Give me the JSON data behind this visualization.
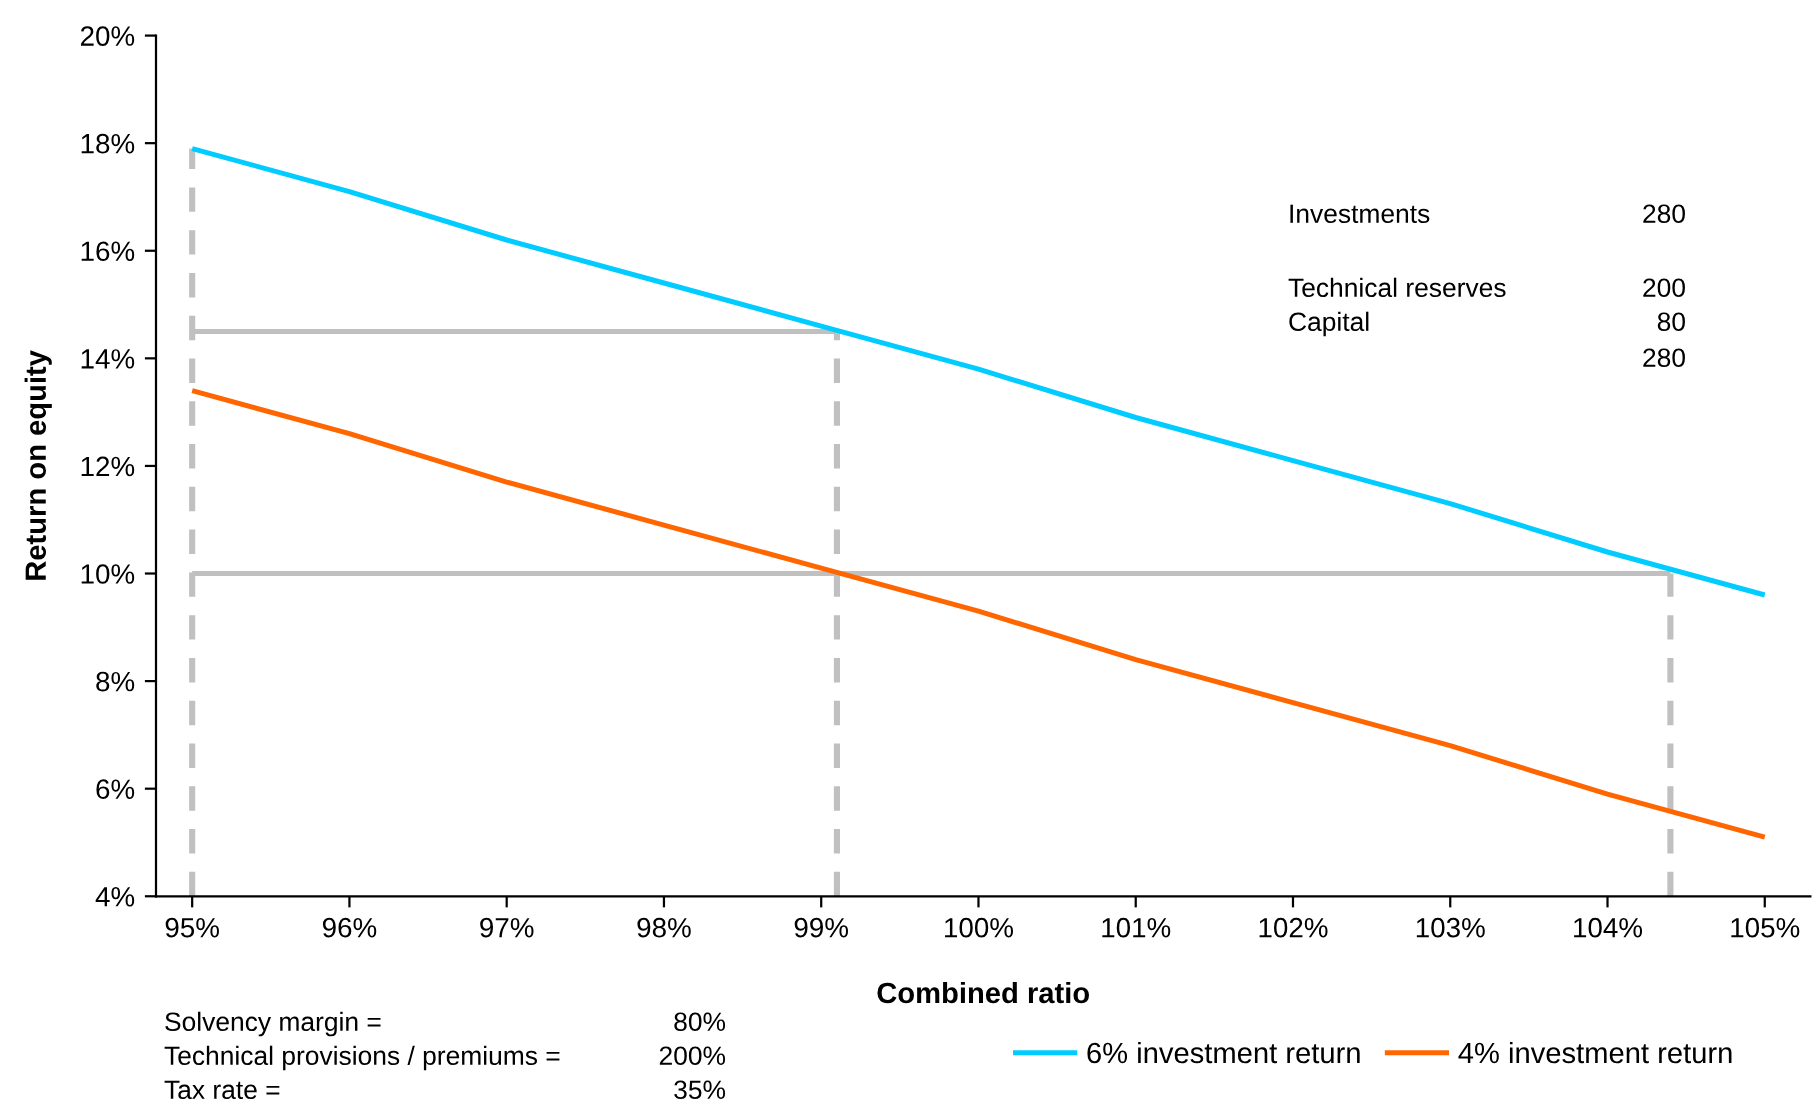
{
  "chart_data": {
    "type": "line",
    "xlabel": "Combined ratio",
    "ylabel": "Return on equity",
    "x": [
      95,
      96,
      97,
      98,
      99,
      100,
      101,
      102,
      103,
      104,
      105
    ],
    "series": [
      {
        "name": "6% investment return",
        "color": "#00ccff",
        "values": [
          17.9,
          17.1,
          16.2,
          15.4,
          14.6,
          13.8,
          12.9,
          12.1,
          11.3,
          10.4,
          9.6
        ]
      },
      {
        "name": "4% investment return",
        "color": "#ff6600",
        "values": [
          13.4,
          12.6,
          11.7,
          10.9,
          10.1,
          9.3,
          8.4,
          7.6,
          6.8,
          5.9,
          5.1
        ]
      },
      {
        "color": "#c0c0c0",
        "x": [
          95,
          99.1
        ],
        "values": [
          14.5,
          14.5
        ],
        "line_style": "solid"
      },
      {
        "color": "#c0c0c0",
        "x": [
          95,
          104.4
        ],
        "values": [
          10,
          10
        ],
        "line_style": "solid"
      },
      {
        "color": "#c0c0c0",
        "x": [
          95,
          95
        ],
        "values": [
          4,
          17.9
        ],
        "line_style": "dashed"
      },
      {
        "color": "#c0c0c0",
        "x": [
          99.1,
          99.1
        ],
        "values": [
          4,
          14.5
        ],
        "line_style": "dashed"
      },
      {
        "color": "#c0c0c0",
        "x": [
          104.4,
          104.4
        ],
        "values": [
          4,
          10
        ],
        "line_style": "dashed"
      }
    ],
    "xlim": [
      94.77,
      105.29
    ],
    "xticks": [
      {
        "value": 95,
        "label": "95%"
      },
      {
        "value": 96,
        "label": "96%"
      },
      {
        "value": 97,
        "label": "97%"
      },
      {
        "value": 98,
        "label": "98%"
      },
      {
        "value": 99,
        "label": "99%"
      },
      {
        "value": 100,
        "label": "100%"
      },
      {
        "value": 101,
        "label": "101%"
      },
      {
        "value": 102,
        "label": "102%"
      },
      {
        "value": 103,
        "label": "103%"
      },
      {
        "value": 104,
        "label": "104%"
      },
      {
        "value": 105,
        "label": "105%"
      }
    ],
    "ylim": [
      4,
      20
    ],
    "yticks": [
      {
        "value": 4,
        "label": "4%"
      },
      {
        "value": 6,
        "label": "6%"
      },
      {
        "value": 8,
        "label": "8%"
      },
      {
        "value": 10,
        "label": "10%"
      },
      {
        "value": 12,
        "label": "12%"
      },
      {
        "value": 14,
        "label": "14%"
      },
      {
        "value": 16,
        "label": "16%"
      },
      {
        "value": 18,
        "label": "18%"
      },
      {
        "value": 20,
        "label": "20%"
      }
    ],
    "grid": false,
    "legend": "bottom right",
    "marker": "none",
    "annotations": [
      "Investments",
      "280",
      "Technical reserves",
      "200",
      "Capital",
      "80",
      "280",
      "Solvency margin =",
      "80%",
      "Technical provisions / premiums =",
      "200%",
      "Tax rate =",
      "35%"
    ]
  }
}
